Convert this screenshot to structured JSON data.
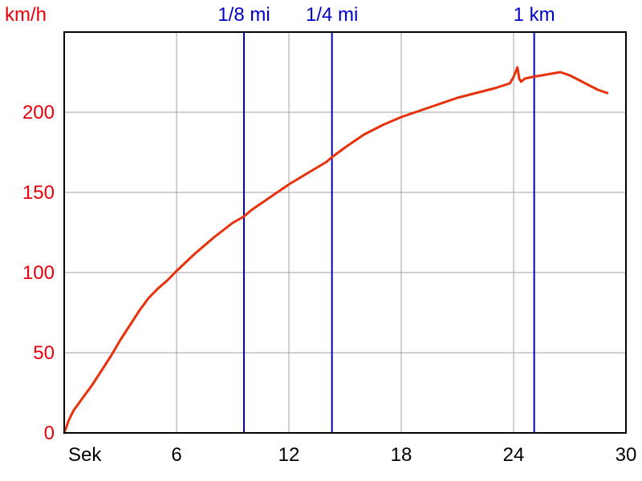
{
  "chart_data": {
    "type": "line",
    "title": "",
    "xlabel": "Sek",
    "ylabel": "km/h",
    "xlim": [
      0,
      30
    ],
    "ylim": [
      0,
      250
    ],
    "x_ticks": [
      6,
      12,
      18,
      24,
      30
    ],
    "y_ticks": [
      0,
      50,
      100,
      150,
      200
    ],
    "grid": true,
    "colors": {
      "series": "#e8300b",
      "markers": "#0000cc",
      "grid": "#a0a0a0",
      "y_text": "#e8000b",
      "x_text": "#000000"
    },
    "markers": [
      {
        "label": "1/8 mi",
        "x": 9.6
      },
      {
        "label": "1/4 mi",
        "x": 14.3
      },
      {
        "label": "1 km",
        "x": 25.1
      }
    ],
    "series": [
      {
        "x": [
          0,
          0.25,
          0.5,
          1,
          1.5,
          2,
          2.5,
          3,
          3.5,
          4,
          4.5,
          5,
          5.5,
          6,
          7,
          8,
          9,
          9.6,
          10,
          11,
          12,
          13,
          14,
          14.3,
          15,
          16,
          17,
          18,
          19,
          20,
          21,
          22,
          23,
          23.8,
          24,
          24.2,
          24.3,
          24.4,
          24.6,
          25,
          25.5,
          26,
          26.5,
          27,
          27.5,
          28,
          28.5,
          29
        ],
        "y": [
          0,
          8,
          14,
          22,
          30,
          39,
          48,
          58,
          67,
          76,
          84,
          90,
          95,
          101,
          112,
          122,
          131,
          135,
          139,
          147,
          155,
          162,
          169,
          172,
          178,
          186,
          192,
          197,
          201,
          205,
          209,
          212,
          215,
          218,
          222,
          228,
          221,
          219,
          221,
          222,
          223,
          224,
          225,
          223,
          220,
          217,
          214,
          212
        ]
      }
    ]
  }
}
